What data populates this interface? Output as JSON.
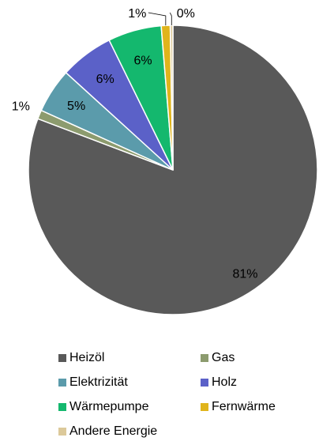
{
  "chart_data": {
    "type": "pie",
    "slices": [
      {
        "label": "Heizöl",
        "value": 81,
        "value_label": "81%",
        "color": "#595959"
      },
      {
        "label": "Gas",
        "value": 1,
        "value_label": "1%",
        "color": "#8c9b6e"
      },
      {
        "label": "Elektrizität",
        "value": 5,
        "value_label": "5%",
        "color": "#5b9bab"
      },
      {
        "label": "Holz",
        "value": 6,
        "value_label": "6%",
        "color": "#5b61c8"
      },
      {
        "label": "Wärmepumpe",
        "value": 6,
        "value_label": "6%",
        "color": "#14b86e"
      },
      {
        "label": "Fernwärme",
        "value": 1,
        "value_label": "1%",
        "color": "#e0b41b"
      },
      {
        "label": "Andere Energie",
        "value": 0.3,
        "value_label": "0%",
        "color": "#dcc99a"
      }
    ],
    "legend_position": "bottom"
  }
}
